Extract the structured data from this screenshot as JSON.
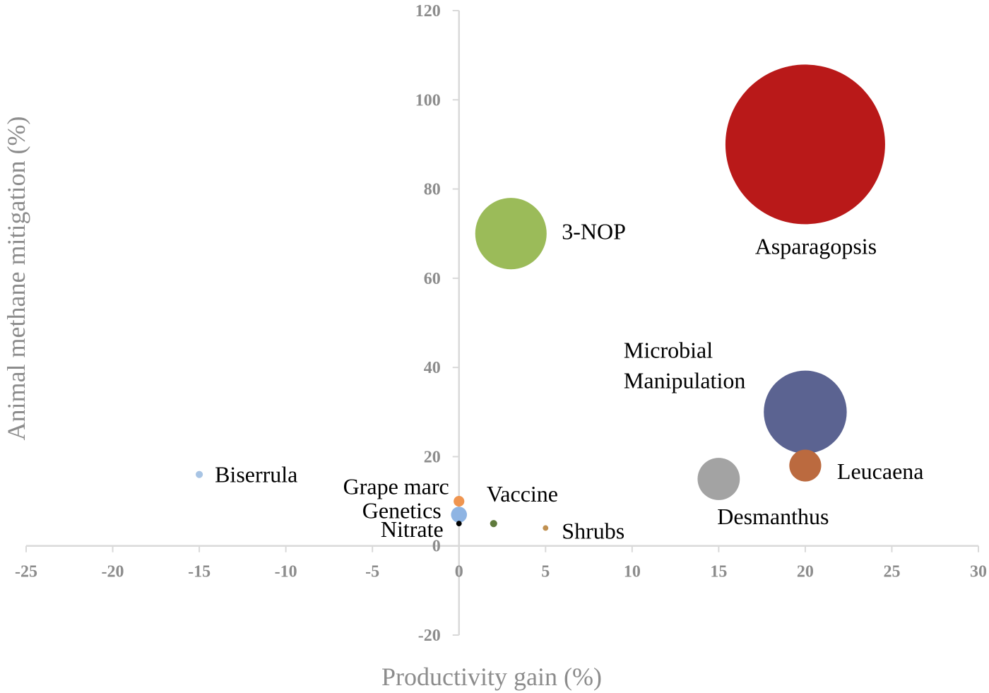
{
  "chart_data": {
    "type": "scatter",
    "subtype": "bubble",
    "xlabel": "Productivity gain (%)",
    "ylabel": "Animal methane mitigation (%)",
    "xlim": [
      -25,
      30
    ],
    "ylim": [
      -20,
      120
    ],
    "xticks": [
      -25,
      -20,
      -15,
      -10,
      -5,
      0,
      5,
      10,
      15,
      20,
      25,
      30
    ],
    "yticks": [
      -20,
      0,
      20,
      40,
      60,
      80,
      100,
      120
    ],
    "grid": false,
    "axis_color": "#d9d9d9",
    "tick_color": "#8c8c8c",
    "points": [
      {
        "name": "Asparagopsis",
        "x": 20,
        "y": 90,
        "size": 100,
        "color": "#b91919",
        "label_lines": [
          "Asparagopsis"
        ]
      },
      {
        "name": "3-NOP",
        "x": 3,
        "y": 70,
        "size": 20,
        "color": "#9bbb59",
        "label_lines": [
          "3-NOP"
        ]
      },
      {
        "name": "Microbial Manipulation",
        "x": 20,
        "y": 30,
        "size": 27,
        "color": "#5b6391",
        "label_lines": [
          "Microbial",
          "Manipulation"
        ]
      },
      {
        "name": "Leucaena",
        "x": 20,
        "y": 18,
        "size": 4,
        "color": "#bb6a3f",
        "label_lines": [
          "Leucaena"
        ]
      },
      {
        "name": "Desmanthus",
        "x": 15,
        "y": 15,
        "size": 7,
        "color": "#a3a3a3",
        "label_lines": [
          "Desmanthus"
        ]
      },
      {
        "name": "Biserrula",
        "x": -15,
        "y": 16,
        "size": 0.2,
        "color": "#a8c4e4",
        "label_lines": [
          "Biserrula"
        ]
      },
      {
        "name": "Grape marc",
        "x": 0,
        "y": 10,
        "size": 0.45,
        "color": "#ef9550",
        "label_lines": [
          "Grape marc"
        ]
      },
      {
        "name": "Vaccine",
        "x": 2,
        "y": 5,
        "size": 0.2,
        "color": "#5f7a3c",
        "label_lines": [
          "Vaccine"
        ]
      },
      {
        "name": "Genetics",
        "x": 0,
        "y": 7,
        "size": 1,
        "color": "#8eb4e3",
        "label_lines": [
          "Genetics"
        ]
      },
      {
        "name": "Nitrate",
        "x": 0,
        "y": 5,
        "size": 0.12,
        "color": "#000000",
        "label_lines": [
          "Nitrate"
        ]
      },
      {
        "name": "Shrubs",
        "x": 5,
        "y": 4,
        "size": 0.12,
        "color": "#c09050",
        "label_lines": [
          "Shrubs"
        ]
      }
    ]
  }
}
